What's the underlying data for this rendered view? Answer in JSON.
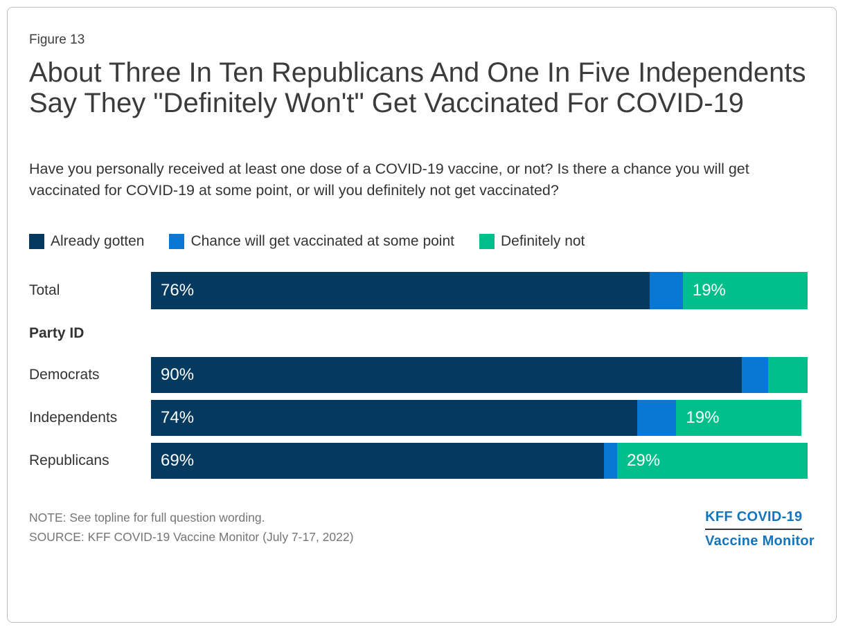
{
  "figure_label": "Figure 13",
  "title": "About Three In Ten Republicans And One In Five Independents Say They \"Definitely Won't\" Get Vaccinated For COVID-19",
  "subtitle": "Have you personally received at least one dose of a COVID-19 vaccine, or not? Is there a chance you will get vaccinated for COVID-19 at some point, or will you definitely not get vaccinated?",
  "chart_data": {
    "type": "bar",
    "orientation": "horizontal",
    "stacked": true,
    "unit": "percent",
    "xlim": [
      0,
      100
    ],
    "grid": false,
    "legend_position": "top",
    "categories": [
      "Total",
      "Democrats",
      "Independents",
      "Republicans"
    ],
    "group_heading": "Party ID",
    "grouped_categories": [
      "Democrats",
      "Independents",
      "Republicans"
    ],
    "series": [
      {
        "name": "Already gotten",
        "key": "already-gotten",
        "color": "#043a60",
        "values": [
          76,
          90,
          74,
          69
        ]
      },
      {
        "name": "Chance will get vaccinated at some point",
        "key": "chance-will-get-vaccinated",
        "color": "#0878d4",
        "values": [
          5,
          4,
          6,
          2
        ]
      },
      {
        "name": "Definitely not",
        "key": "definitely-not",
        "color": "#00bf8b",
        "values": [
          19,
          6,
          19,
          29
        ]
      }
    ],
    "segment_labels_shown": [
      [
        "76%",
        "",
        "19%"
      ],
      [
        "90%",
        "",
        ""
      ],
      [
        "74%",
        "",
        "19%"
      ],
      [
        "69%",
        "",
        "29%"
      ]
    ]
  },
  "footer": {
    "note": "NOTE: See topline for full question wording.",
    "source": "SOURCE: KFF COVID-19 Vaccine Monitor (July 7-17, 2022)"
  },
  "logo": {
    "line1": "KFF COVID-19",
    "line2": "Vaccine Monitor",
    "color": "#1375bd"
  },
  "colors": {
    "frame_border": "#bdbdbd",
    "title_text": "#3b3b3b",
    "body_text": "#333333",
    "footer_text": "#757575",
    "bar_label_text": "#ffffff",
    "logo_underline": "#333333"
  }
}
